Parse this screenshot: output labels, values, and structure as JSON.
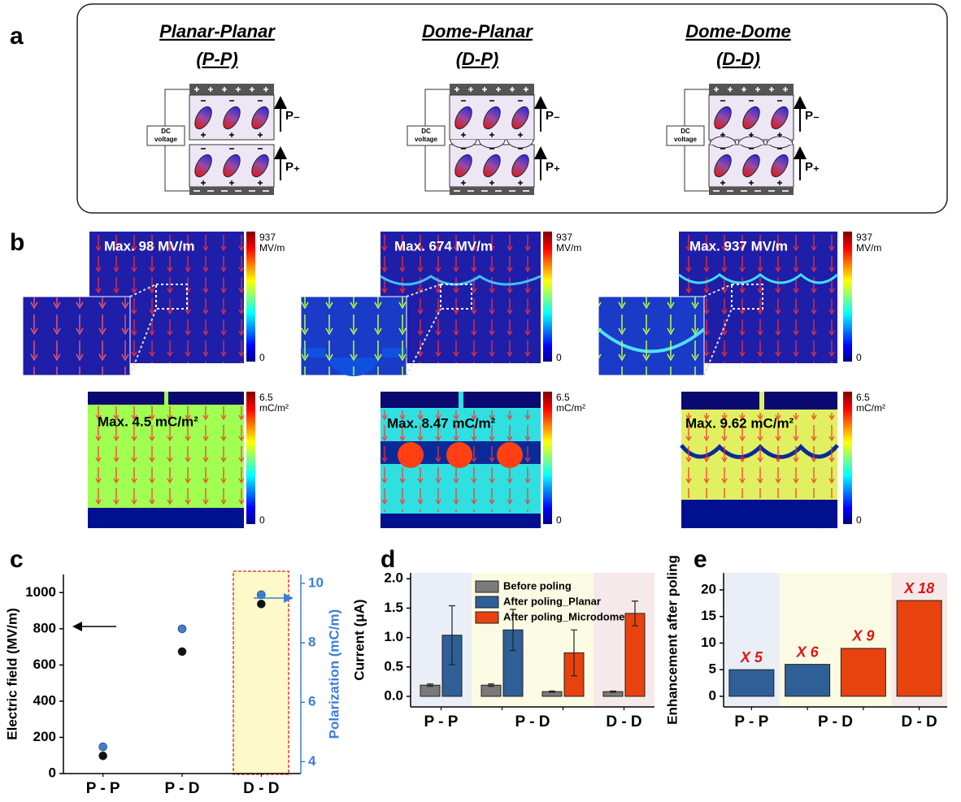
{
  "panels": {
    "a": {
      "label": "a",
      "columns": [
        {
          "title": "Planar-Planar",
          "abbr": "(P-P)"
        },
        {
          "title": "Dome-Planar",
          "abbr": "(D-P)"
        },
        {
          "title": "Dome-Dome",
          "abbr": "(D-D)"
        }
      ],
      "dc_label": [
        "DC",
        "voltage"
      ],
      "polarization_labels": [
        "P₋",
        "P₊"
      ]
    },
    "b": {
      "label": "b",
      "field_maps": [
        {
          "max_label": "Max. 98 MV/m"
        },
        {
          "max_label": "Max. 674 MV/m"
        },
        {
          "max_label": "Max. 937 MV/m"
        }
      ],
      "field_colorbar": {
        "max": 937,
        "unit": "MV/m",
        "min": 0
      },
      "polarization_maps": [
        {
          "max_label": "Max. 4.5 mC/m²"
        },
        {
          "max_label": "Max. 8.47 mC/m²"
        },
        {
          "max_label": "Max. 9.62 mC/m²"
        }
      ],
      "polarization_colorbar": {
        "max": 6.5,
        "unit": "mC/m²",
        "min": 0
      }
    }
  },
  "chart_data": [
    {
      "type": "scatter",
      "panel_label": "c",
      "categories": [
        "P - P",
        "P - D",
        "D - D"
      ],
      "ylabel": "Electric field (MV/m)",
      "y2label": "Polarization (mC/m)",
      "series": [
        {
          "color": "#111111",
          "values": [
            98,
            674,
            937
          ]
        },
        {
          "color": "#3a7fd5",
          "axis": "y2",
          "values": [
            4.5,
            8.47,
            9.62
          ]
        }
      ],
      "ylim": [
        0,
        1100
      ],
      "yticks": [
        0,
        200,
        400,
        600,
        800,
        1000
      ],
      "y2lim": [
        3.6,
        10.3
      ],
      "y2ticks": [
        4,
        6,
        8,
        10
      ]
    },
    {
      "type": "bar",
      "panel_label": "d",
      "categories": [
        "P - P",
        "P - D",
        null,
        "D - D"
      ],
      "ylabel": "Current (μA)",
      "band_colors": [
        "#e9eef7",
        "#fbfbe3",
        "#fbfbe3",
        "#f6e9e9"
      ],
      "series": [
        {
          "name": "Before poling",
          "color": "#7a7a7a",
          "values": [
            0.19,
            0.19,
            0.08,
            0.08
          ],
          "errors": [
            0.02,
            0.02,
            0.01,
            0.01
          ]
        },
        {
          "name": "After poling_Planar",
          "color": "#2f5f97",
          "values": [
            1.04,
            1.13,
            null,
            null
          ],
          "errors": [
            0.5,
            0.35,
            null,
            null
          ]
        },
        {
          "name": "After poling_Microdome",
          "color": "#e8420f",
          "values": [
            null,
            null,
            0.74,
            1.41
          ],
          "errors": [
            null,
            null,
            0.39,
            0.21
          ]
        }
      ],
      "ylim": [
        -0.18,
        2.1
      ],
      "yticks": [
        {
          "value": 0,
          "label": "0.0"
        },
        0.5,
        {
          "value": 1,
          "label": "1.0"
        },
        1.5,
        {
          "value": 2,
          "label": "2.0"
        }
      ],
      "legend": "upper center"
    },
    {
      "type": "bar",
      "panel_label": "e",
      "categories": [
        "P - P",
        "P - D",
        null,
        "D - D"
      ],
      "ylabel": "Enhancement after poling",
      "band_colors": [
        "#e9eef7",
        "#fbfbe3",
        "#fbfbe3",
        "#f6e9e9"
      ],
      "values": [
        5,
        6,
        9,
        18
      ],
      "value_labels": [
        "X 5",
        "X 6",
        "X 9",
        "X 18"
      ],
      "colors": [
        "#2f5f97",
        "#2f5f97",
        "#e8420f",
        "#e8420f"
      ],
      "ylim": [
        -2,
        23.2
      ],
      "yticks": [
        0,
        5,
        10,
        15,
        20
      ]
    }
  ]
}
